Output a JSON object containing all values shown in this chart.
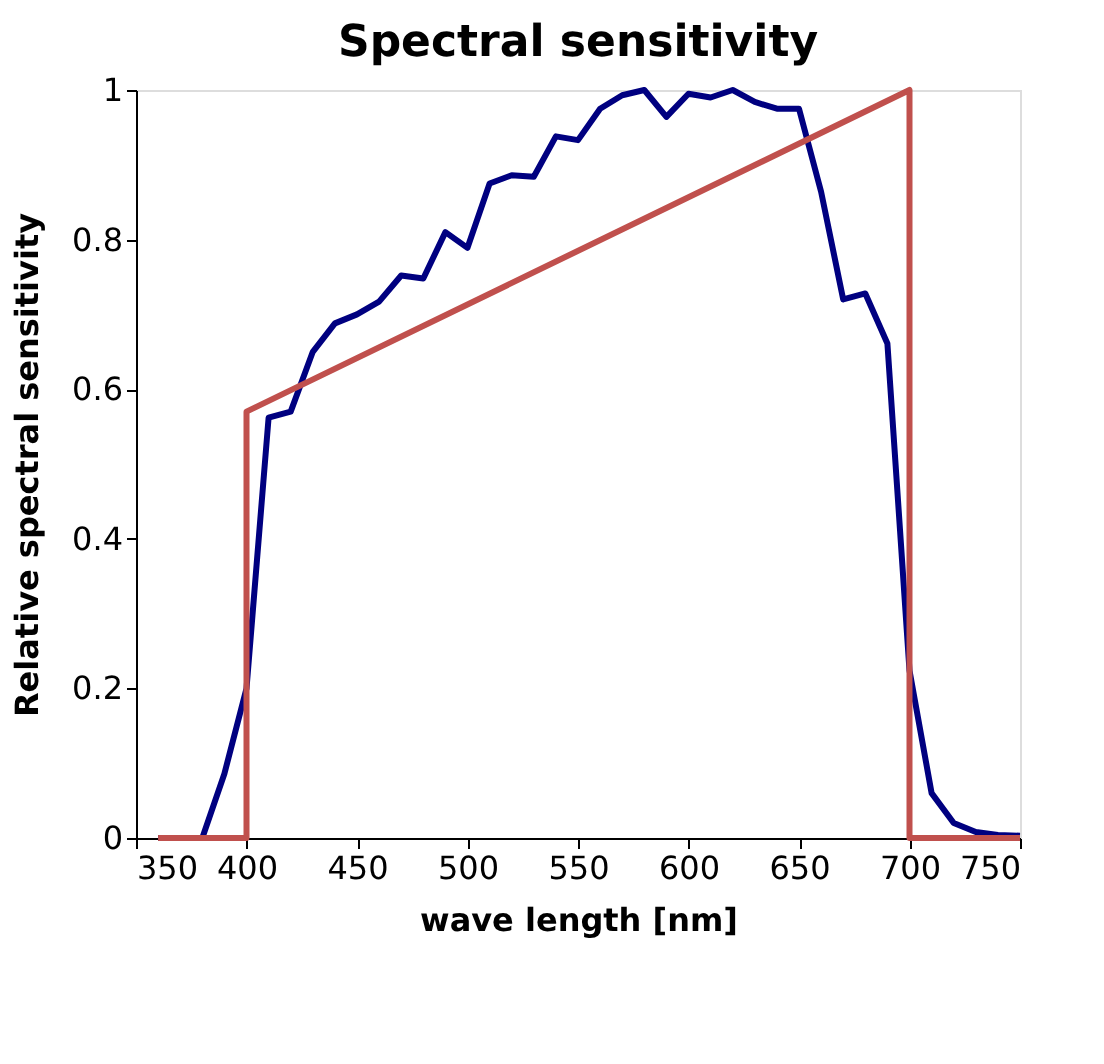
{
  "chart_data": {
    "type": "line",
    "title": "Spectral sensitivity",
    "xlabel": "wave length [nm]",
    "ylabel": "Relative spectral sensitivity",
    "xlim": [
      350,
      750
    ],
    "xticks": [
      350,
      400,
      450,
      500,
      550,
      600,
      650,
      700,
      750
    ],
    "ylim": [
      0,
      1
    ],
    "yticks": [
      0,
      0.2,
      0.4,
      0.6,
      0.8,
      1
    ],
    "grid": false,
    "legend": false,
    "marker": "none",
    "line_style": "solid",
    "series": [
      {
        "color": "#000080",
        "x": [
          360,
          370,
          380,
          390,
          400,
          410,
          420,
          430,
          440,
          450,
          460,
          470,
          480,
          490,
          500,
          510,
          520,
          530,
          540,
          550,
          560,
          570,
          580,
          590,
          600,
          610,
          620,
          630,
          640,
          650,
          660,
          670,
          680,
          690,
          700,
          710,
          720,
          730,
          740,
          750
        ],
        "values": [
          0,
          0,
          0,
          0.086,
          0.2,
          0.562,
          0.57,
          0.65,
          0.688,
          0.7,
          0.717,
          0.752,
          0.748,
          0.81,
          0.789,
          0.875,
          0.886,
          0.884,
          0.938,
          0.933,
          0.975,
          0.993,
          1.0,
          0.964,
          0.995,
          0.99,
          1.0,
          0.984,
          0.975,
          0.975,
          0.864,
          0.72,
          0.728,
          0.661,
          0.224,
          0.06,
          0.02,
          0.008,
          0.004,
          0.003
        ]
      },
      {
        "color": "#c0504d",
        "x": [
          360,
          400,
          400,
          700,
          700,
          750
        ],
        "values": [
          0,
          0,
          0.57,
          1,
          0,
          0
        ]
      }
    ]
  }
}
